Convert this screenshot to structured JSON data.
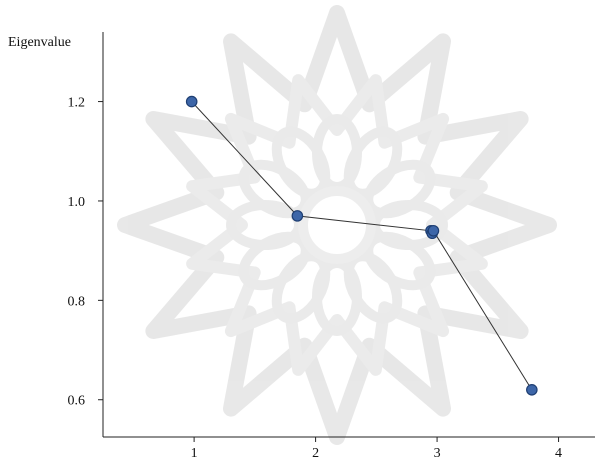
{
  "chart_data": {
    "type": "scatter",
    "title": "",
    "ylabel": "Eigenvalue",
    "xlabel": "",
    "x_ticks": [
      1,
      2,
      3,
      4
    ],
    "y_ticks": [
      "0.6",
      "0.8",
      "1.0",
      "1.2"
    ],
    "xlim": [
      0.25,
      4.3
    ],
    "ylim": [
      0.525,
      1.34
    ],
    "grid": false,
    "legend": "none",
    "series": [
      {
        "points": [
          {
            "x": 0.98,
            "y": 1.2
          },
          {
            "x": 1.85,
            "y": 0.97
          },
          {
            "x": 2.95,
            "y": 0.94
          },
          {
            "x": 2.96,
            "y": 0.935
          },
          {
            "x": 2.97,
            "y": 0.94
          },
          {
            "x": 3.78,
            "y": 0.62
          }
        ],
        "color": "#3d66a8"
      }
    ],
    "background_watermark": "decorative-star-rosette"
  }
}
